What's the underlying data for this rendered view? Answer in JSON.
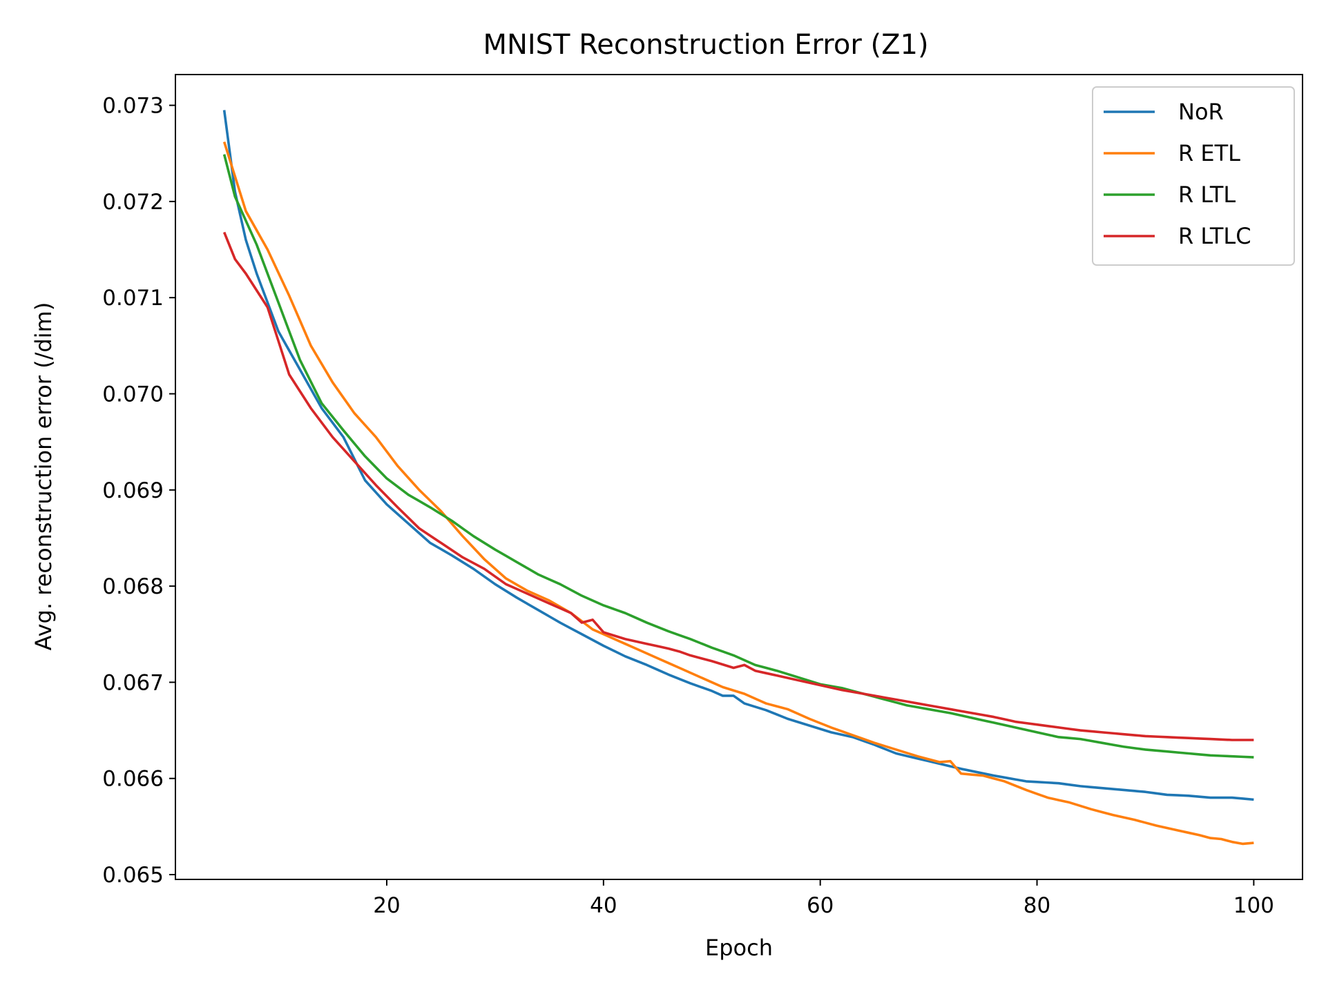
{
  "chart_data": {
    "type": "line",
    "title": "MNIST Reconstruction Error (Z1)",
    "xlabel": "Epoch",
    "ylabel": "Avg. reconstruction error (/dim)",
    "xlim": [
      0.5,
      104.5
    ],
    "ylim": [
      0.06495,
      0.07332
    ],
    "x_ticks": [
      20,
      40,
      60,
      80,
      100
    ],
    "x_tick_labels": [
      "20",
      "40",
      "60",
      "80",
      "100"
    ],
    "y_ticks": [
      0.065,
      0.066,
      0.067,
      0.068,
      0.069,
      0.07,
      0.071,
      0.072,
      0.073
    ],
    "y_tick_labels": [
      "0.065",
      "0.066",
      "0.067",
      "0.068",
      "0.069",
      "0.070",
      "0.071",
      "0.072",
      "0.073"
    ],
    "grid": false,
    "legend_position": "top-right",
    "x_start": 5,
    "x_end": 100,
    "series": [
      {
        "name": "NoR",
        "color": "#1f77b4",
        "points": [
          [
            5,
            0.07295
          ],
          [
            6,
            0.0721
          ],
          [
            7,
            0.0716
          ],
          [
            8,
            0.07125
          ],
          [
            10,
            0.07065
          ],
          [
            12,
            0.07025
          ],
          [
            14,
            0.06985
          ],
          [
            16,
            0.06955
          ],
          [
            18,
            0.0691
          ],
          [
            20,
            0.06885
          ],
          [
            22,
            0.06865
          ],
          [
            24,
            0.06845
          ],
          [
            26,
            0.06832
          ],
          [
            28,
            0.06818
          ],
          [
            30,
            0.06802
          ],
          [
            32,
            0.06788
          ],
          [
            34,
            0.06775
          ],
          [
            36,
            0.06762
          ],
          [
            38,
            0.0675
          ],
          [
            40,
            0.06738
          ],
          [
            42,
            0.06727
          ],
          [
            44,
            0.06718
          ],
          [
            46,
            0.06708
          ],
          [
            48,
            0.06699
          ],
          [
            50,
            0.06691
          ],
          [
            51,
            0.06686
          ],
          [
            52,
            0.06686
          ],
          [
            53,
            0.06678
          ],
          [
            55,
            0.06671
          ],
          [
            57,
            0.06662
          ],
          [
            59,
            0.06655
          ],
          [
            61,
            0.06648
          ],
          [
            63,
            0.06643
          ],
          [
            65,
            0.06635
          ],
          [
            67,
            0.06626
          ],
          [
            70,
            0.06618
          ],
          [
            73,
            0.0661
          ],
          [
            76,
            0.06603
          ],
          [
            79,
            0.06597
          ],
          [
            82,
            0.06595
          ],
          [
            84,
            0.06592
          ],
          [
            86,
            0.0659
          ],
          [
            88,
            0.06588
          ],
          [
            90,
            0.06586
          ],
          [
            92,
            0.06583
          ],
          [
            94,
            0.06582
          ],
          [
            96,
            0.0658
          ],
          [
            98,
            0.0658
          ],
          [
            100,
            0.06578
          ]
        ]
      },
      {
        "name": "R ETL",
        "color": "#ff7f0e",
        "points": [
          [
            5,
            0.07262
          ],
          [
            7,
            0.0719
          ],
          [
            9,
            0.0715
          ],
          [
            11,
            0.07102
          ],
          [
            13,
            0.0705
          ],
          [
            15,
            0.07012
          ],
          [
            17,
            0.0698
          ],
          [
            19,
            0.06955
          ],
          [
            21,
            0.06925
          ],
          [
            23,
            0.069
          ],
          [
            25,
            0.06878
          ],
          [
            27,
            0.06852
          ],
          [
            29,
            0.06828
          ],
          [
            31,
            0.06808
          ],
          [
            33,
            0.06795
          ],
          [
            35,
            0.06785
          ],
          [
            37,
            0.06772
          ],
          [
            39,
            0.06755
          ],
          [
            41,
            0.06745
          ],
          [
            43,
            0.06735
          ],
          [
            45,
            0.06725
          ],
          [
            47,
            0.06715
          ],
          [
            49,
            0.06705
          ],
          [
            51,
            0.06695
          ],
          [
            53,
            0.06688
          ],
          [
            55,
            0.06678
          ],
          [
            57,
            0.06672
          ],
          [
            59,
            0.06662
          ],
          [
            61,
            0.06653
          ],
          [
            63,
            0.06645
          ],
          [
            65,
            0.06637
          ],
          [
            67,
            0.0663
          ],
          [
            69,
            0.06623
          ],
          [
            71,
            0.06617
          ],
          [
            72,
            0.06618
          ],
          [
            73,
            0.06605
          ],
          [
            75,
            0.06603
          ],
          [
            77,
            0.06597
          ],
          [
            79,
            0.06588
          ],
          [
            81,
            0.0658
          ],
          [
            83,
            0.06575
          ],
          [
            85,
            0.06568
          ],
          [
            87,
            0.06562
          ],
          [
            89,
            0.06557
          ],
          [
            91,
            0.06551
          ],
          [
            93,
            0.06546
          ],
          [
            95,
            0.06541
          ],
          [
            96,
            0.06538
          ],
          [
            97,
            0.06537
          ],
          [
            98,
            0.06534
          ],
          [
            99,
            0.06532
          ],
          [
            100,
            0.06533
          ]
        ]
      },
      {
        "name": "R LTL",
        "color": "#2ca02c",
        "points": [
          [
            5,
            0.07249
          ],
          [
            6,
            0.07205
          ],
          [
            8,
            0.07155
          ],
          [
            10,
            0.07095
          ],
          [
            12,
            0.07035
          ],
          [
            14,
            0.0699
          ],
          [
            16,
            0.06962
          ],
          [
            18,
            0.06935
          ],
          [
            20,
            0.06912
          ],
          [
            22,
            0.06895
          ],
          [
            24,
            0.06882
          ],
          [
            26,
            0.06868
          ],
          [
            28,
            0.06852
          ],
          [
            30,
            0.06838
          ],
          [
            32,
            0.06825
          ],
          [
            34,
            0.06812
          ],
          [
            36,
            0.06802
          ],
          [
            38,
            0.0679
          ],
          [
            40,
            0.0678
          ],
          [
            42,
            0.06772
          ],
          [
            44,
            0.06762
          ],
          [
            46,
            0.06753
          ],
          [
            48,
            0.06745
          ],
          [
            50,
            0.06736
          ],
          [
            52,
            0.06728
          ],
          [
            54,
            0.06718
          ],
          [
            56,
            0.06712
          ],
          [
            58,
            0.06705
          ],
          [
            60,
            0.06698
          ],
          [
            62,
            0.06694
          ],
          [
            64,
            0.06688
          ],
          [
            66,
            0.06682
          ],
          [
            68,
            0.06676
          ],
          [
            70,
            0.06672
          ],
          [
            72,
            0.06668
          ],
          [
            74,
            0.06663
          ],
          [
            76,
            0.06658
          ],
          [
            78,
            0.06653
          ],
          [
            80,
            0.06648
          ],
          [
            82,
            0.06643
          ],
          [
            84,
            0.06641
          ],
          [
            86,
            0.06637
          ],
          [
            88,
            0.06633
          ],
          [
            90,
            0.0663
          ],
          [
            92,
            0.06628
          ],
          [
            94,
            0.06626
          ],
          [
            96,
            0.06624
          ],
          [
            98,
            0.06623
          ],
          [
            100,
            0.06622
          ]
        ]
      },
      {
        "name": "R LTLC",
        "color": "#d62728",
        "points": [
          [
            5,
            0.07168
          ],
          [
            6,
            0.0714
          ],
          [
            7,
            0.07125
          ],
          [
            9,
            0.0709
          ],
          [
            11,
            0.0702
          ],
          [
            13,
            0.06985
          ],
          [
            15,
            0.06955
          ],
          [
            17,
            0.0693
          ],
          [
            19,
            0.06905
          ],
          [
            21,
            0.06882
          ],
          [
            23,
            0.0686
          ],
          [
            25,
            0.06845
          ],
          [
            27,
            0.0683
          ],
          [
            29,
            0.06818
          ],
          [
            31,
            0.06802
          ],
          [
            33,
            0.06792
          ],
          [
            35,
            0.06782
          ],
          [
            37,
            0.06772
          ],
          [
            38,
            0.06762
          ],
          [
            39,
            0.06765
          ],
          [
            40,
            0.06752
          ],
          [
            42,
            0.06745
          ],
          [
            44,
            0.0674
          ],
          [
            46,
            0.06735
          ],
          [
            47,
            0.06732
          ],
          [
            48,
            0.06728
          ],
          [
            50,
            0.06722
          ],
          [
            52,
            0.06715
          ],
          [
            53,
            0.06718
          ],
          [
            54,
            0.06712
          ],
          [
            56,
            0.06707
          ],
          [
            58,
            0.06702
          ],
          [
            60,
            0.06697
          ],
          [
            62,
            0.06692
          ],
          [
            64,
            0.06688
          ],
          [
            66,
            0.06684
          ],
          [
            68,
            0.0668
          ],
          [
            70,
            0.06676
          ],
          [
            72,
            0.06672
          ],
          [
            74,
            0.06668
          ],
          [
            76,
            0.06664
          ],
          [
            78,
            0.06659
          ],
          [
            80,
            0.06656
          ],
          [
            82,
            0.06653
          ],
          [
            84,
            0.0665
          ],
          [
            86,
            0.06648
          ],
          [
            88,
            0.06646
          ],
          [
            90,
            0.06644
          ],
          [
            92,
            0.06643
          ],
          [
            94,
            0.06642
          ],
          [
            96,
            0.06641
          ],
          [
            98,
            0.0664
          ],
          [
            100,
            0.0664
          ]
        ]
      }
    ]
  }
}
